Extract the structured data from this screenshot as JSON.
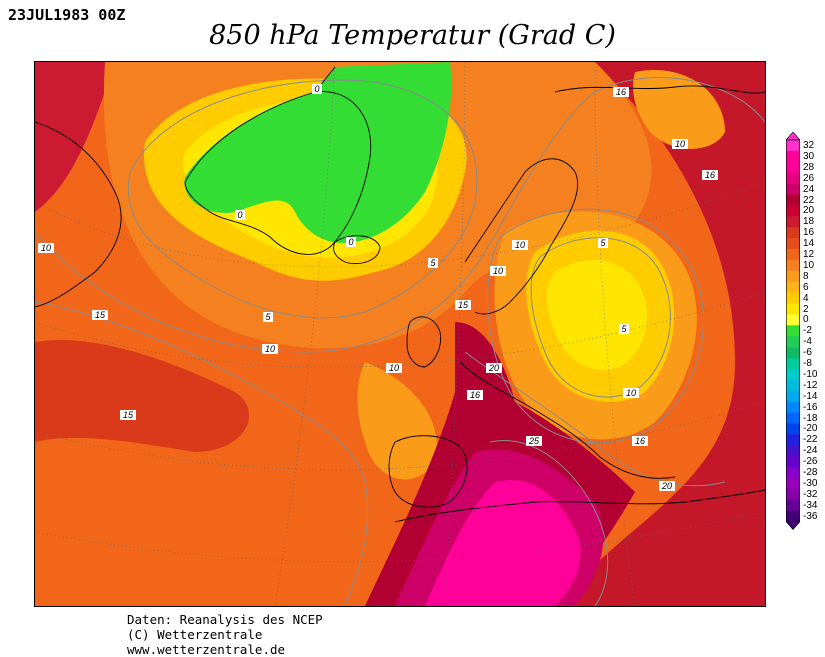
{
  "header": {
    "date": "23JUL1983 00Z",
    "title": "850 hPa Temperatur (Grad C)"
  },
  "footer": {
    "line1": "Daten: Reanalysis des NCEP",
    "line2": "(C) Wetterzentrale",
    "line3": "www.wetterzentrale.de"
  },
  "legend": {
    "levels": [
      "32",
      "30",
      "28",
      "26",
      "24",
      "22",
      "20",
      "18",
      "16",
      "14",
      "12",
      "10",
      "8",
      "6",
      "4",
      "2",
      "0",
      "-2",
      "-4",
      "-6",
      "-8",
      "-10",
      "-12",
      "-14",
      "-16",
      "-18",
      "-20",
      "-22",
      "-24",
      "-26",
      "-28",
      "-30",
      "-32",
      "-34",
      "-36"
    ],
    "colors": [
      "#ff33cc",
      "#ff0099",
      "#ff0099",
      "#e6007f",
      "#cc0066",
      "#b30033",
      "#cc0033",
      "#cc1a33",
      "#d93a1a",
      "#e64d1a",
      "#f26619",
      "#f58020",
      "#fa9c1a",
      "#ffb319",
      "#ffcc00",
      "#ffe600",
      "#ffff33",
      "#33dd33",
      "#22cc55",
      "#11bb66",
      "#00cc99",
      "#00cccc",
      "#00bbdd",
      "#00aaee",
      "#0088ff",
      "#0066ff",
      "#0044ee",
      "#2222dd",
      "#4411cc",
      "#6600cc",
      "#8800cc",
      "#9900bb",
      "#8800aa",
      "#660099",
      "#440077"
    ]
  },
  "contour_labels": [
    {
      "text": "0"
    },
    {
      "text": "0"
    },
    {
      "text": "0"
    },
    {
      "text": "5"
    },
    {
      "text": "5"
    },
    {
      "text": "5"
    },
    {
      "text": "5"
    },
    {
      "text": "10"
    },
    {
      "text": "10"
    },
    {
      "text": "10"
    },
    {
      "text": "10"
    },
    {
      "text": "10"
    },
    {
      "text": "10"
    },
    {
      "text": "10"
    },
    {
      "text": "15"
    },
    {
      "text": "15"
    },
    {
      "text": "15"
    },
    {
      "text": "16"
    },
    {
      "text": "16"
    },
    {
      "text": "16"
    },
    {
      "text": "16"
    },
    {
      "text": "20"
    },
    {
      "text": "20"
    },
    {
      "text": "25"
    }
  ]
}
